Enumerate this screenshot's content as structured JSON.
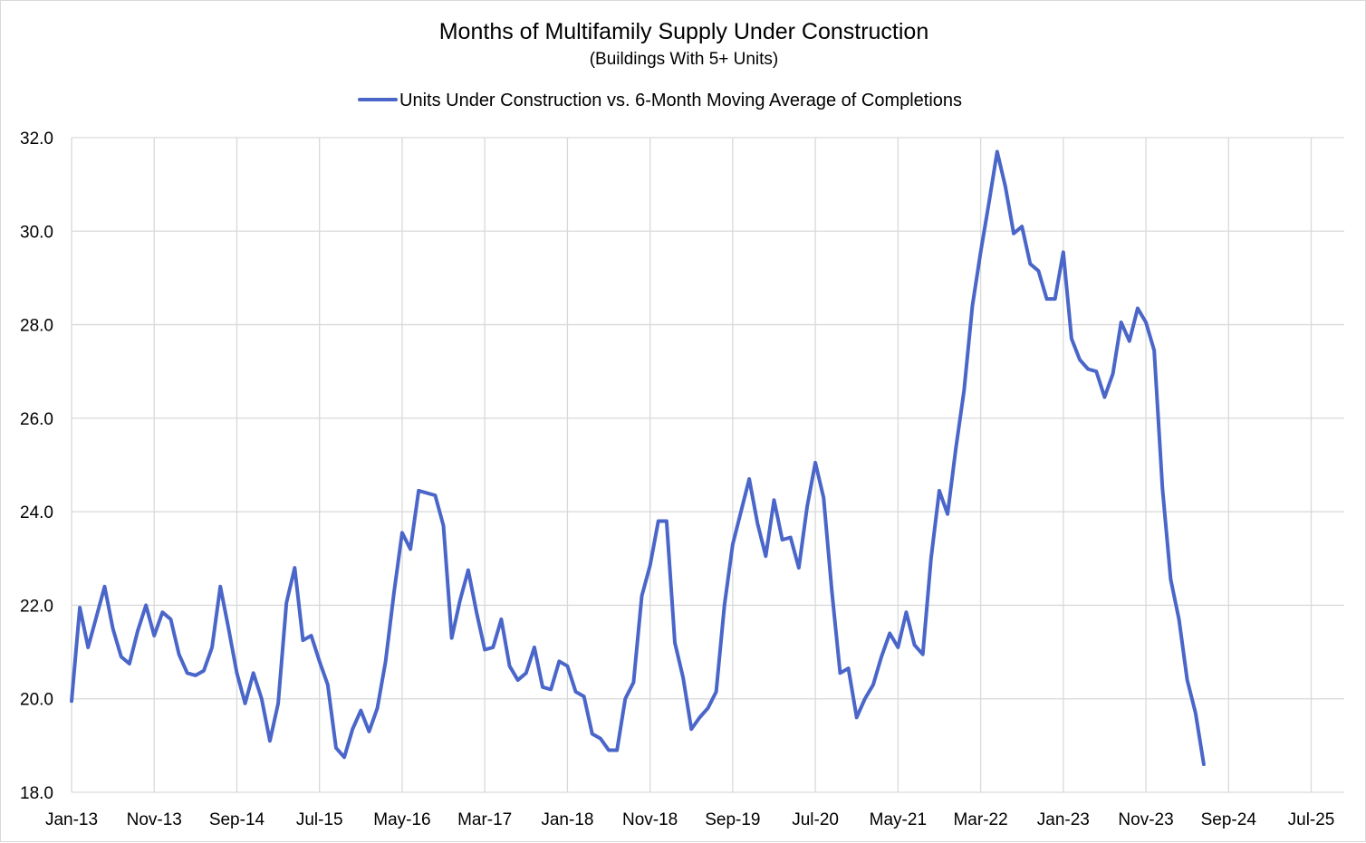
{
  "chart_data": {
    "type": "line",
    "title": "Months of Multifamily Supply Under Construction",
    "subtitle": "(Buildings With 5+ Units)",
    "legend_position": "top",
    "grid": {
      "x": true,
      "y": true
    },
    "ylim": [
      18.0,
      32.0
    ],
    "y_ticks": [
      "18.0",
      "20.0",
      "22.0",
      "24.0",
      "26.0",
      "28.0",
      "30.0",
      "32.0"
    ],
    "x_range": [
      "2013-01",
      "2025-11"
    ],
    "x_ticks": [
      "Jan-13",
      "Nov-13",
      "Sep-14",
      "Jul-15",
      "May-16",
      "Mar-17",
      "Jan-18",
      "Nov-18",
      "Sep-19",
      "Jul-20",
      "May-21",
      "Mar-22",
      "Jan-23",
      "Nov-23",
      "Sep-24",
      "Jul-25"
    ],
    "series_color": "#4a66c9",
    "series": [
      {
        "name": "Units Under Construction vs. 6-Month Moving Average of Completions",
        "start": "2013-01",
        "values": [
          19.95,
          21.95,
          21.1,
          21.75,
          22.4,
          21.5,
          20.9,
          20.75,
          21.45,
          22.0,
          21.35,
          21.85,
          21.7,
          20.95,
          20.55,
          20.5,
          20.6,
          21.1,
          22.4,
          21.5,
          20.55,
          19.9,
          20.55,
          20.0,
          19.1,
          19.9,
          22.05,
          22.8,
          21.25,
          21.35,
          20.8,
          20.3,
          18.95,
          18.75,
          19.35,
          19.75,
          19.3,
          19.8,
          20.8,
          22.25,
          23.55,
          23.2,
          24.45,
          24.4,
          24.35,
          23.7,
          21.3,
          22.1,
          22.75,
          21.85,
          21.05,
          21.1,
          21.7,
          20.7,
          20.4,
          20.55,
          21.1,
          20.25,
          20.2,
          20.8,
          20.7,
          20.15,
          20.05,
          19.25,
          19.15,
          18.9,
          18.9,
          20.0,
          20.35,
          22.2,
          22.85,
          23.8,
          23.8,
          21.2,
          20.45,
          19.35,
          19.6,
          19.8,
          20.15,
          22.0,
          23.3,
          24.0,
          24.7,
          23.75,
          23.05,
          24.25,
          23.4,
          23.45,
          22.8,
          24.1,
          25.05,
          24.3,
          22.3,
          20.55,
          20.65,
          19.6,
          20.0,
          20.3,
          20.9,
          21.4,
          21.1,
          21.85,
          21.15,
          20.95,
          23.0,
          24.45,
          23.95,
          25.35,
          26.6,
          28.4,
          29.55,
          30.6,
          31.7,
          30.95,
          29.95,
          30.1,
          29.3,
          29.15,
          28.55,
          28.55,
          29.55,
          27.7,
          27.25,
          27.05,
          27.0,
          26.45,
          26.95,
          28.05,
          27.65,
          28.35,
          28.05,
          27.45,
          24.5,
          22.55,
          21.7,
          20.4,
          19.7,
          18.6
        ]
      }
    ]
  }
}
